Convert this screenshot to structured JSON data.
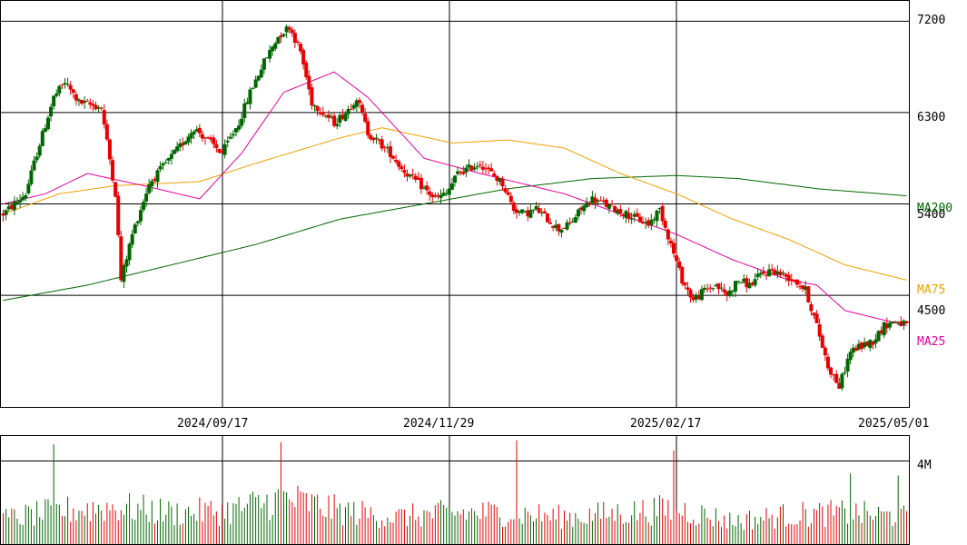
{
  "chart_data": [
    {
      "type": "candlestick",
      "title": "",
      "ylim": [
        3400,
        7400
      ],
      "y_ticks": [
        "7200",
        "6300",
        "5400",
        "4500"
      ],
      "x_tick_labels": [
        "2024/09/17",
        "2024/11/29",
        "2025/02/17",
        "2025/05/01"
      ],
      "grid": true,
      "up_color": "#006600",
      "down_color": "#e60000",
      "ma_lines": [
        {
          "label": "MA25",
          "color": "#e600a0"
        },
        {
          "label": "MA75",
          "color": "#f0a000"
        },
        {
          "label": "MA200",
          "color": "#006600"
        }
      ],
      "price_keypoints": [
        [
          0,
          5300
        ],
        [
          8,
          5500
        ],
        [
          12,
          5900
        ],
        [
          18,
          6450
        ],
        [
          22,
          6600
        ],
        [
          27,
          6400
        ],
        [
          35,
          6350
        ],
        [
          40,
          5500
        ],
        [
          42,
          4650
        ],
        [
          46,
          5100
        ],
        [
          52,
          5600
        ],
        [
          58,
          5800
        ],
        [
          64,
          6000
        ],
        [
          68,
          6150
        ],
        [
          72,
          6050
        ],
        [
          78,
          5900
        ],
        [
          84,
          6200
        ],
        [
          88,
          6500
        ],
        [
          93,
          6800
        ],
        [
          98,
          7050
        ],
        [
          102,
          7150
        ],
        [
          106,
          6900
        ],
        [
          110,
          6400
        ],
        [
          114,
          6300
        ],
        [
          118,
          6200
        ],
        [
          122,
          6300
        ],
        [
          126,
          6450
        ],
        [
          130,
          6100
        ],
        [
          134,
          6000
        ],
        [
          138,
          5900
        ],
        [
          142,
          5750
        ],
        [
          146,
          5650
        ],
        [
          150,
          5550
        ],
        [
          154,
          5450
        ],
        [
          158,
          5500
        ],
        [
          162,
          5700
        ],
        [
          166,
          5750
        ],
        [
          170,
          5800
        ],
        [
          174,
          5700
        ],
        [
          178,
          5600
        ],
        [
          182,
          5350
        ],
        [
          186,
          5300
        ],
        [
          190,
          5350
        ],
        [
          194,
          5250
        ],
        [
          198,
          5150
        ],
        [
          202,
          5200
        ],
        [
          206,
          5350
        ],
        [
          210,
          5450
        ],
        [
          214,
          5400
        ],
        [
          218,
          5350
        ],
        [
          222,
          5300
        ],
        [
          226,
          5250
        ],
        [
          230,
          5200
        ],
        [
          234,
          5350
        ],
        [
          238,
          5000
        ],
        [
          242,
          4650
        ],
        [
          246,
          4450
        ],
        [
          250,
          4550
        ],
        [
          254,
          4600
        ],
        [
          258,
          4500
        ],
        [
          262,
          4650
        ],
        [
          266,
          4600
        ],
        [
          270,
          4700
        ],
        [
          274,
          4750
        ],
        [
          278,
          4700
        ],
        [
          282,
          4650
        ],
        [
          286,
          4550
        ],
        [
          290,
          4200
        ],
        [
          294,
          3800
        ],
        [
          298,
          3600
        ],
        [
          302,
          3950
        ],
        [
          306,
          4000
        ],
        [
          310,
          4050
        ],
        [
          314,
          4200
        ],
        [
          318,
          4250
        ],
        [
          322,
          4200
        ]
      ],
      "ma25_keypoints": [
        [
          0,
          5400
        ],
        [
          15,
          5500
        ],
        [
          30,
          5700
        ],
        [
          50,
          5580
        ],
        [
          70,
          5450
        ],
        [
          85,
          5900
        ],
        [
          100,
          6500
        ],
        [
          118,
          6700
        ],
        [
          130,
          6450
        ],
        [
          150,
          5850
        ],
        [
          170,
          5700
        ],
        [
          182,
          5620
        ],
        [
          200,
          5500
        ],
        [
          220,
          5300
        ],
        [
          240,
          5100
        ],
        [
          260,
          4850
        ],
        [
          280,
          4650
        ],
        [
          290,
          4600
        ],
        [
          300,
          4350
        ],
        [
          322,
          4200
        ]
      ],
      "ma75_keypoints": [
        [
          0,
          5300
        ],
        [
          20,
          5500
        ],
        [
          40,
          5580
        ],
        [
          70,
          5620
        ],
        [
          90,
          5800
        ],
        [
          120,
          6050
        ],
        [
          135,
          6150
        ],
        [
          160,
          6000
        ],
        [
          180,
          6030
        ],
        [
          200,
          5950
        ],
        [
          220,
          5700
        ],
        [
          240,
          5500
        ],
        [
          260,
          5250
        ],
        [
          280,
          5050
        ],
        [
          300,
          4800
        ],
        [
          322,
          4650
        ]
      ],
      "ma200_keypoints": [
        [
          0,
          4450
        ],
        [
          30,
          4600
        ],
        [
          60,
          4800
        ],
        [
          90,
          5000
        ],
        [
          120,
          5250
        ],
        [
          150,
          5400
        ],
        [
          180,
          5550
        ],
        [
          210,
          5650
        ],
        [
          240,
          5680
        ],
        [
          262,
          5650
        ],
        [
          290,
          5550
        ],
        [
          322,
          5480
        ]
      ],
      "total_bars": 323
    },
    {
      "type": "bar",
      "title": "",
      "y_ticks": [
        "4M"
      ],
      "ylim": [
        0,
        5.2
      ],
      "volume_keypoints": [
        [
          0,
          1.2
        ],
        [
          20,
          1.6
        ],
        [
          40,
          1.8
        ],
        [
          60,
          1.5
        ],
        [
          80,
          1.6
        ],
        [
          100,
          2.2
        ],
        [
          120,
          1.6
        ],
        [
          140,
          1.3
        ],
        [
          160,
          1.5
        ],
        [
          180,
          1.5
        ],
        [
          200,
          1.3
        ],
        [
          220,
          1.5
        ],
        [
          240,
          1.7
        ],
        [
          260,
          1.1
        ],
        [
          280,
          1.4
        ],
        [
          300,
          1.5
        ],
        [
          322,
          1.3
        ]
      ],
      "volume_spikes": [
        [
          18,
          4.8
        ],
        [
          99,
          4.9
        ],
        [
          183,
          5.0
        ],
        [
          239,
          4.5
        ],
        [
          319,
          3.3
        ],
        [
          302,
          3.4
        ]
      ]
    }
  ]
}
